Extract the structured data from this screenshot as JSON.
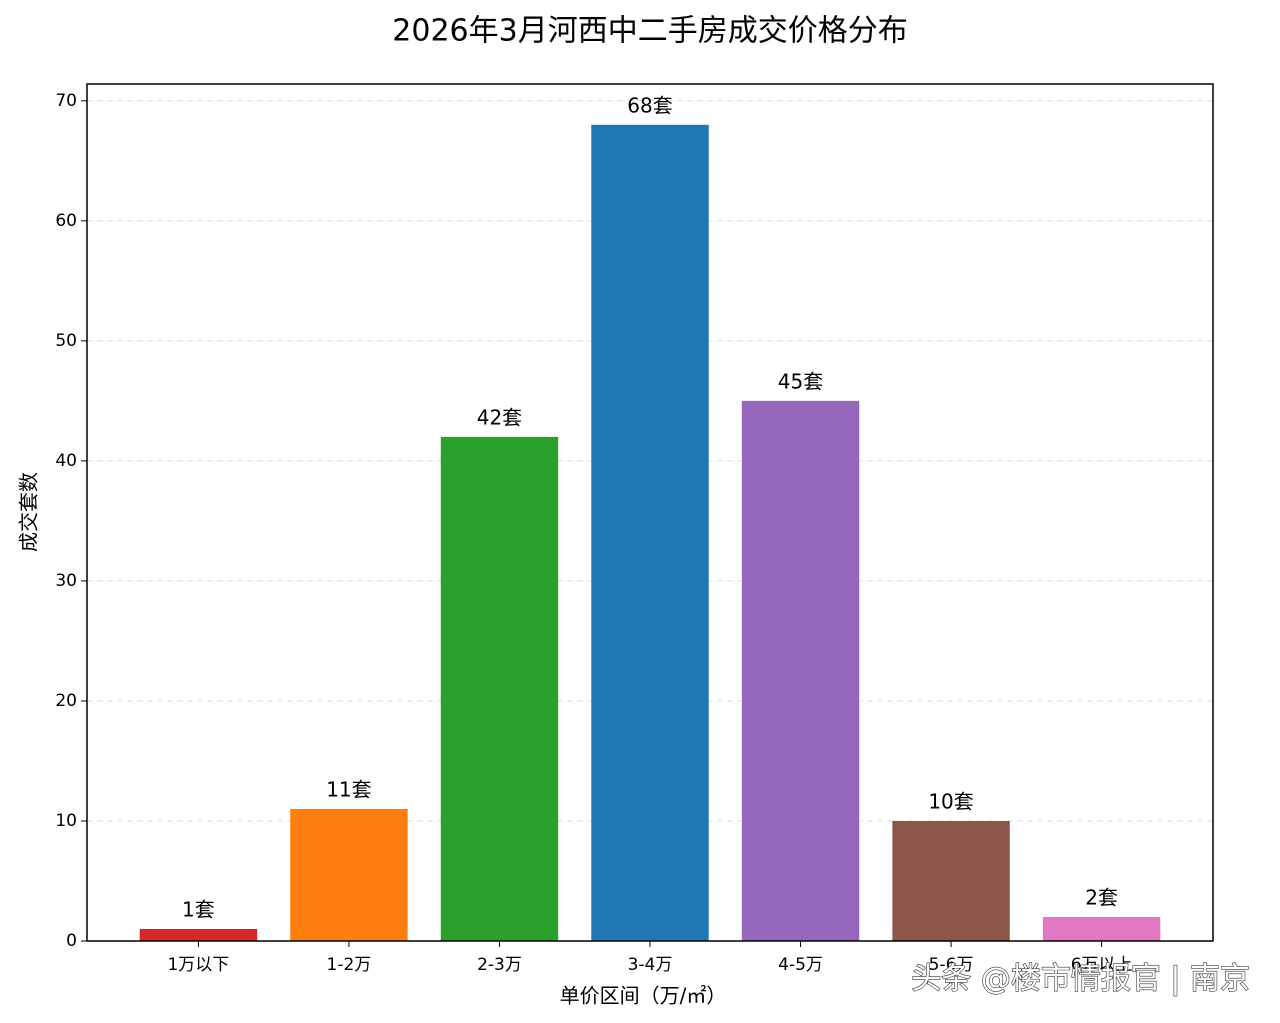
{
  "chart_data": {
    "type": "bar",
    "title": "2026年3月河西中二手房成交价格分布",
    "x_label": "单价区间（万/㎡）",
    "y_label": "成交套数",
    "categories": [
      "1万以下",
      "1-2万",
      "2-3万",
      "3-4万",
      "4-5万",
      "5-6万",
      "6万以上"
    ],
    "values": [
      1,
      11,
      42,
      68,
      45,
      10,
      2
    ],
    "value_labels": [
      "1套",
      "11套",
      "42套",
      "68套",
      "45套",
      "10套",
      "2套"
    ],
    "colors": [
      "#d62728",
      "#ff7f0e",
      "#2ca02c",
      "#1f77b4",
      "#9467bd",
      "#8c564b",
      "#e377c2"
    ],
    "ylim": [
      0,
      71.4
    ],
    "yticks": [
      0,
      10,
      20,
      30,
      40,
      50,
      60,
      70
    ],
    "grid": true,
    "annotation": "头条 @楼市情报官 | 南京"
  }
}
